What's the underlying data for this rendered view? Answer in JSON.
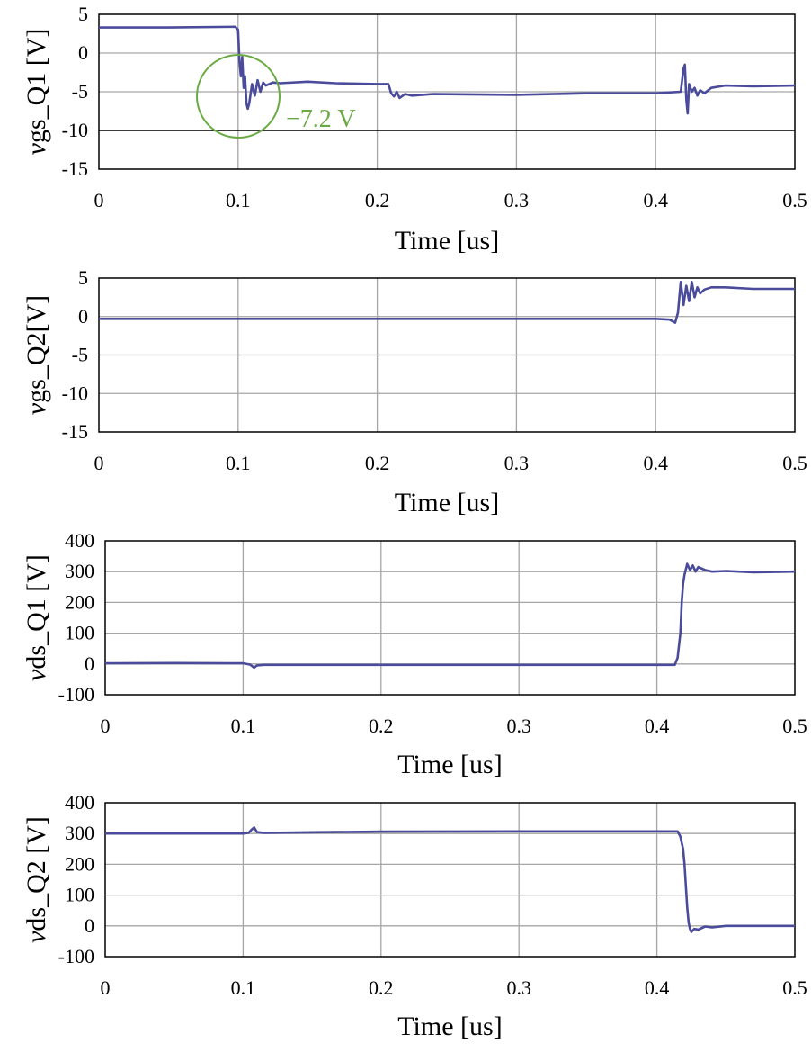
{
  "figure": {
    "line_color": "#4b4b9c",
    "grid_color": "#a6a6a6",
    "annotation_color": "#6aaa44"
  },
  "chart_data": [
    {
      "type": "line",
      "ylabel_italic": "v",
      "ylabel_rest": "gs_Q1 [V]",
      "xlabel": "Time [us]",
      "xlim": [
        0,
        0.5
      ],
      "ylim": [
        -15,
        5
      ],
      "xticks": [
        "0",
        "0.1",
        "0.2",
        "0.3",
        "0.4",
        "0.5"
      ],
      "yticks": [
        "5",
        "0",
        "-5",
        "-10",
        "-15"
      ],
      "xtick_values": [
        0,
        0.1,
        0.2,
        0.3,
        0.4,
        0.5
      ],
      "ytick_values": [
        5,
        0,
        -5,
        -10,
        -15
      ],
      "grid": true,
      "reference_line": -10,
      "annotation": {
        "text": "−7.2 V",
        "x": 0.108,
        "y": -7.2,
        "marker": "circle"
      },
      "series": [
        {
          "x": [
            0,
            0.05,
            0.098,
            0.1,
            0.101,
            0.102,
            0.103,
            0.104,
            0.105,
            0.106,
            0.107,
            0.108,
            0.11,
            0.112,
            0.114,
            0.116,
            0.118,
            0.12,
            0.125,
            0.13,
            0.15,
            0.17,
            0.2,
            0.208,
            0.21,
            0.212,
            0.214,
            0.216,
            0.22,
            0.225,
            0.24,
            0.3,
            0.35,
            0.4,
            0.418,
            0.42,
            0.421,
            0.422,
            0.423,
            0.424,
            0.426,
            0.428,
            0.43,
            0.432,
            0.435,
            0.44,
            0.45,
            0.47,
            0.5
          ],
          "y": [
            3.3,
            3.3,
            3.4,
            3.0,
            -1.0,
            -3.0,
            -0.5,
            -4.5,
            -3.0,
            -6.5,
            -7.2,
            -6.5,
            -4.0,
            -5.5,
            -3.5,
            -5.0,
            -3.8,
            -4.2,
            -3.8,
            -3.9,
            -3.7,
            -3.9,
            -4.0,
            -4.0,
            -5.2,
            -5.6,
            -5.0,
            -5.8,
            -5.3,
            -5.5,
            -5.3,
            -5.4,
            -5.2,
            -5.2,
            -5.0,
            -2.0,
            -1.5,
            -6.0,
            -7.8,
            -4.0,
            -5.0,
            -4.5,
            -5.5,
            -4.8,
            -5.2,
            -4.5,
            -4.2,
            -4.3,
            -4.2
          ]
        }
      ]
    },
    {
      "type": "line",
      "ylabel_italic": "v",
      "ylabel_rest": "gs_Q2[V]",
      "xlabel": "Time [us]",
      "xlim": [
        0,
        0.5
      ],
      "ylim": [
        -15,
        5
      ],
      "xticks": [
        "0",
        "0.1",
        "0.2",
        "0.3",
        "0.4",
        "0.5"
      ],
      "yticks": [
        "5",
        "0",
        "-5",
        "-10",
        "-15"
      ],
      "xtick_values": [
        0,
        0.1,
        0.2,
        0.3,
        0.4,
        0.5
      ],
      "ytick_values": [
        5,
        0,
        -5,
        -10,
        -15
      ],
      "grid": true,
      "series": [
        {
          "x": [
            0,
            0.1,
            0.2,
            0.3,
            0.4,
            0.41,
            0.414,
            0.416,
            0.418,
            0.42,
            0.422,
            0.424,
            0.426,
            0.428,
            0.43,
            0.432,
            0.435,
            0.44,
            0.45,
            0.47,
            0.5
          ],
          "y": [
            -0.3,
            -0.3,
            -0.3,
            -0.3,
            -0.3,
            -0.4,
            -0.8,
            0.5,
            4.5,
            1.5,
            4.0,
            2.0,
            4.5,
            2.5,
            3.8,
            3.0,
            3.5,
            3.8,
            3.8,
            3.6,
            3.6
          ]
        }
      ]
    },
    {
      "type": "line",
      "ylabel_italic": "v",
      "ylabel_rest": "ds_Q1 [V]",
      "xlabel": "Time [us]",
      "xlim": [
        0,
        0.5
      ],
      "ylim": [
        -100,
        400
      ],
      "xticks": [
        "0",
        "0.1",
        "0.2",
        "0.3",
        "0.4",
        "0.5"
      ],
      "yticks": [
        "400",
        "300",
        "200",
        "100",
        "0",
        "-100"
      ],
      "xtick_values": [
        0,
        0.1,
        0.2,
        0.3,
        0.4,
        0.5
      ],
      "ytick_values": [
        400,
        300,
        200,
        100,
        0,
        -100
      ],
      "grid": true,
      "series": [
        {
          "x": [
            0,
            0.05,
            0.1,
            0.105,
            0.108,
            0.11,
            0.115,
            0.15,
            0.2,
            0.3,
            0.4,
            0.413,
            0.415,
            0.417,
            0.418,
            0.419,
            0.42,
            0.422,
            0.424,
            0.426,
            0.428,
            0.43,
            0.435,
            0.44,
            0.45,
            0.47,
            0.5
          ],
          "y": [
            2,
            3,
            2,
            -2,
            -12,
            -5,
            -3,
            -3,
            -3,
            -3,
            -3,
            -3,
            20,
            100,
            200,
            260,
            290,
            325,
            305,
            320,
            300,
            315,
            305,
            300,
            302,
            298,
            300
          ]
        }
      ]
    },
    {
      "type": "line",
      "ylabel_italic": "v",
      "ylabel_rest": "ds_Q2 [V]",
      "xlabel": "Time [us]",
      "xlim": [
        0,
        0.5
      ],
      "ylim": [
        -100,
        400
      ],
      "xticks": [
        "0",
        "0.1",
        "0.2",
        "0.3",
        "0.4",
        "0.5"
      ],
      "yticks": [
        "400",
        "300",
        "200",
        "100",
        "0",
        "-100"
      ],
      "xtick_values": [
        0,
        0.1,
        0.2,
        0.3,
        0.4,
        0.5
      ],
      "ytick_values": [
        400,
        300,
        200,
        100,
        0,
        -100
      ],
      "grid": true,
      "series": [
        {
          "x": [
            0,
            0.05,
            0.1,
            0.104,
            0.106,
            0.108,
            0.11,
            0.115,
            0.15,
            0.2,
            0.3,
            0.4,
            0.415,
            0.417,
            0.419,
            0.42,
            0.421,
            0.422,
            0.423,
            0.424,
            0.425,
            0.427,
            0.43,
            0.435,
            0.44,
            0.45,
            0.47,
            0.5
          ],
          "y": [
            300,
            300,
            300,
            302,
            312,
            320,
            305,
            302,
            304,
            306,
            307,
            307,
            307,
            290,
            250,
            200,
            130,
            60,
            10,
            -10,
            -20,
            -10,
            -12,
            -2,
            -5,
            0,
            0,
            0
          ]
        }
      ]
    }
  ]
}
